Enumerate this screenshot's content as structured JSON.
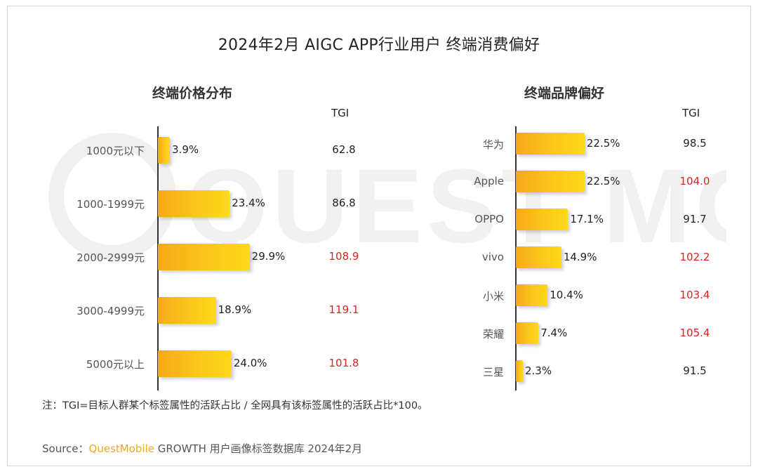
{
  "title": "2024年2月 AIGC APP行业用户 终端消费偏好",
  "watermark": "QUEST MOBILE",
  "colors": {
    "bar_start": "#f7a81b",
    "bar_end": "#ffd91a",
    "tgi_high": "#e02020",
    "tgi_normal": "#222222",
    "brand": "#f5a623"
  },
  "chart_data": [
    {
      "type": "bar",
      "orientation": "horizontal",
      "title": "终端价格分布",
      "tgi_header": "TGI",
      "categories": [
        "1000元以下",
        "1000-1999元",
        "2000-2999元",
        "3000-4999元",
        "5000元以上"
      ],
      "values": [
        3.9,
        23.4,
        29.9,
        18.9,
        24.0
      ],
      "value_labels": [
        "3.9%",
        "23.4%",
        "29.9%",
        "18.9%",
        "24.0%"
      ],
      "tgi": [
        "62.8",
        "86.8",
        "108.9",
        "119.1",
        "101.8"
      ],
      "xlim": [
        0,
        30
      ]
    },
    {
      "type": "bar",
      "orientation": "horizontal",
      "title": "终端品牌偏好",
      "tgi_header": "TGI",
      "categories": [
        "华为",
        "Apple",
        "OPPO",
        "vivo",
        "小米",
        "荣耀",
        "三星"
      ],
      "values": [
        22.5,
        22.5,
        17.1,
        14.9,
        10.4,
        7.4,
        2.3
      ],
      "value_labels": [
        "22.5%",
        "22.5%",
        "17.1%",
        "14.9%",
        "10.4%",
        "7.4%",
        "2.3%"
      ],
      "tgi": [
        "98.5",
        "104.0",
        "91.7",
        "102.2",
        "103.4",
        "105.4",
        "91.5"
      ],
      "xlim": [
        0,
        30
      ]
    }
  ],
  "note": "注：TGI=目标人群某个标签属性的活跃占比 / 全网具有该标签属性的活跃占比*100。",
  "source": {
    "prefix": "Source：",
    "brand": "QuestMobile",
    "rest": " GROWTH 用户画像标签数据库 2024年2月"
  }
}
